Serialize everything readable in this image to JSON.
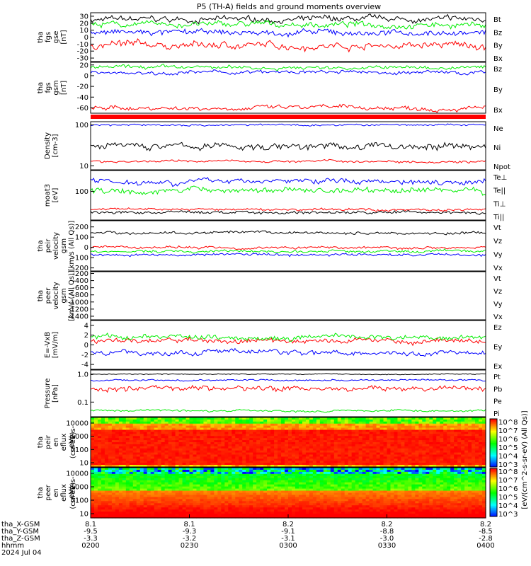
{
  "title": "P5 (TH-A) fields and ground moments overview",
  "colors": {
    "black": "#000000",
    "red": "#ff0000",
    "green": "#00ee00",
    "blue": "#0000ff"
  },
  "chart_data": [
    {
      "type": "line",
      "panel": "fgs_gse",
      "ylabel": [
        "tha",
        "fgs",
        "gse",
        "[nT]"
      ],
      "yticks": [
        "30",
        "20",
        "10",
        "0",
        "-10",
        "-20",
        "-30"
      ],
      "ylim": [
        -35,
        35
      ],
      "series": [
        {
          "name": "Bt",
          "color": "#000000",
          "level": 25,
          "noise": 5
        },
        {
          "name": "Bz",
          "color": "#ff0000",
          "level": -12,
          "noise": 6
        },
        {
          "name": "By",
          "color": "#00ee00",
          "level": 18,
          "noise": 5
        },
        {
          "name": "Bx",
          "color": "#0000ff",
          "level": 6,
          "noise": 5
        }
      ]
    },
    {
      "type": "line",
      "panel": "fgs_gsm",
      "ylabel": [
        "tha",
        "fgs",
        "gsm",
        "[nT]"
      ],
      "yticks": [
        "20",
        "0",
        "-20",
        "-40",
        "-60"
      ],
      "ylim": [
        -70,
        25
      ],
      "series": [
        {
          "name": "Bz",
          "color": "#ff0000",
          "level": -60,
          "noise": 5
        },
        {
          "name": "By",
          "color": "#00ee00",
          "level": 15,
          "noise": 4
        },
        {
          "name": "Bx",
          "color": "#0000ff",
          "level": 6,
          "noise": 4
        }
      ]
    },
    {
      "type": "line",
      "panel": "density",
      "ylabel": [
        "Density",
        "[cm-3]"
      ],
      "log": true,
      "yticks": [
        "100",
        "10"
      ],
      "ylim": [
        8,
        120
      ],
      "series": [
        {
          "name": "Ne",
          "color": "#ff0000",
          "level": 13,
          "noise": 1
        },
        {
          "name": "Ni",
          "color": "#000000",
          "level": 30,
          "noise": 7
        },
        {
          "name": "Npot",
          "color": "#0000ff",
          "level": 100,
          "noise": 6
        }
      ]
    },
    {
      "type": "line",
      "panel": "temperature",
      "ylabel": [
        "moat3",
        "[eV]"
      ],
      "log": true,
      "yticks": [
        "100"
      ],
      "ylim": [
        15,
        400
      ],
      "series": [
        {
          "name": "Te⊥",
          "color": "#ff0000",
          "level": 30,
          "noise": 3
        },
        {
          "name": "Te||",
          "color": "#000000",
          "level": 25,
          "noise": 3
        },
        {
          "name": "Ti⊥",
          "color": "#0000ff",
          "level": 200,
          "noise": 40
        },
        {
          "name": "Ti||",
          "color": "#00ee00",
          "level": 110,
          "noise": 25
        }
      ]
    },
    {
      "type": "line",
      "panel": "peir_velocity",
      "ylabel": [
        "tha",
        "peir",
        "velocity",
        "gsm",
        "[km/s (All Qs)]"
      ],
      "yticks": [
        "200",
        "100",
        "0",
        "-100",
        "-200"
      ],
      "ylim": [
        -230,
        260
      ],
      "series": [
        {
          "name": "Vt",
          "color": "#000000",
          "level": 140,
          "noise": 15
        },
        {
          "name": "Vz",
          "color": "#ff0000",
          "level": 0,
          "noise": 15
        },
        {
          "name": "Vy",
          "color": "#00ee00",
          "level": -40,
          "noise": 15
        },
        {
          "name": "Vx",
          "color": "#0000ff",
          "level": -70,
          "noise": 15
        }
      ]
    },
    {
      "type": "line",
      "panel": "peer_velocity",
      "ylabel": [
        "tha",
        "peer",
        "velocity",
        "gsm",
        "[km/s (All Qs)]"
      ],
      "yticks": [
        "-200",
        "-400",
        "-600",
        "-800",
        "-1000",
        "-1200",
        "-1400"
      ],
      "ylim": [
        -1500,
        -150
      ],
      "series": [
        {
          "name": "Vt",
          "color": "#000000"
        },
        {
          "name": "Vz",
          "color": "#ff0000"
        },
        {
          "name": "Vy",
          "color": "#00ee00"
        },
        {
          "name": "Vx",
          "color": "#0000ff"
        }
      ]
    },
    {
      "type": "line",
      "panel": "efield",
      "ylabel": [
        "E=-VxB",
        "[mV/m]"
      ],
      "yticks": [
        "4",
        "2",
        "0",
        "-2",
        "-4"
      ],
      "ylim": [
        -5,
        5
      ],
      "series": [
        {
          "name": "Ez",
          "color": "#ff0000",
          "level": 0.8,
          "noise": 0.6
        },
        {
          "name": "Ey",
          "color": "#00ee00",
          "level": 1.6,
          "noise": 0.6
        },
        {
          "name": "Ex",
          "color": "#0000ff",
          "level": -1.5,
          "noise": 0.6
        }
      ]
    },
    {
      "type": "line",
      "panel": "pressure",
      "ylabel": [
        "Pressure",
        "[nPa]"
      ],
      "log": true,
      "yticks": [
        "1.0",
        "0.1"
      ],
      "ylim": [
        0.03,
        1.4
      ],
      "series": [
        {
          "name": "Pt",
          "color": "#000000",
          "level": 1.0,
          "noise": 0.05
        },
        {
          "name": "Pb",
          "color": "#ff0000",
          "level": 0.3,
          "noise": 0.08
        },
        {
          "name": "Pe",
          "color": "#00ee00",
          "level": 0.05,
          "noise": 0.005
        },
        {
          "name": "Pi",
          "color": "#0000ff",
          "level": 0.6,
          "noise": 0.05
        }
      ]
    },
    {
      "type": "heatmap",
      "panel": "peir_eflux",
      "ylabel": [
        "tha",
        "peir",
        "en",
        "eflux",
        "eV/",
        "(cm^2-s-",
        "sr-eV)"
      ],
      "yticks": [
        "10000",
        "1000",
        "100",
        "10"
      ]
    },
    {
      "type": "heatmap",
      "panel": "peer_eflux",
      "ylabel": [
        "tha",
        "peer",
        "en",
        "eflux",
        "eV/",
        "(cm^2-s-",
        "sr-eV)"
      ],
      "yticks": [
        "10000",
        "1000",
        "100",
        "10"
      ]
    }
  ],
  "colorbar": {
    "label": "[eV/(cm^2-s-sr-eV) (All Qs)]",
    "ticks_top": [
      "10^8",
      "10^7",
      "10^6",
      "10^5",
      "10^4",
      "10^3"
    ],
    "ticks_bottom": [
      "10^8",
      "10^7",
      "10^6",
      "10^5",
      "10^4",
      "10^3"
    ]
  },
  "time_axis": {
    "row_labels": [
      "tha_X-GSM",
      "tha_Y-GSM",
      "tha_Z-GSM",
      "hhmm",
      "2024 Jul 04"
    ],
    "columns": [
      {
        "x": "8.1",
        "y": "-9.5",
        "z": "-3.3",
        "t": "0200"
      },
      {
        "x": "8.1",
        "y": "-9.3",
        "z": "-3.2",
        "t": "0230"
      },
      {
        "x": "8.2",
        "y": "-9.1",
        "z": "-3.1",
        "t": "0300"
      },
      {
        "x": "8.2",
        "y": "-8.8",
        "z": "-3.0",
        "t": "0330"
      },
      {
        "x": "8.2",
        "y": "-8.5",
        "z": "-2.8",
        "t": "0400"
      }
    ]
  }
}
